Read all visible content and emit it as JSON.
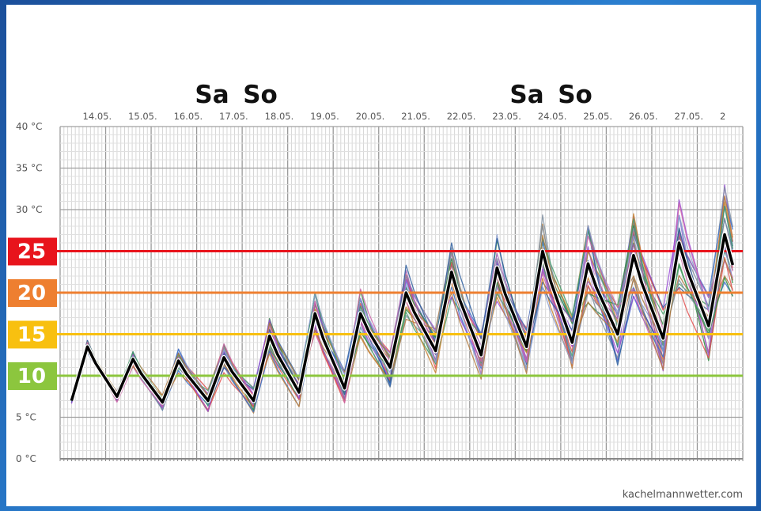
{
  "chart_data": {
    "type": "line",
    "ylabel_unit": "°C",
    "ylim": [
      0,
      40
    ],
    "y_ticks": [
      "0 °C",
      "5 °C",
      "10 °C",
      "15 °C",
      "20 °C",
      "25 °C",
      "30 °C",
      "35 °C",
      "40 °C"
    ],
    "x_start": "13.05. 00:00",
    "x_end": "28.05. 00:00",
    "x_ticks": [
      "14.05.",
      "15.05.",
      "16.05.",
      "17.05.",
      "18.05.",
      "19.05.",
      "20.05.",
      "21.05.",
      "22.05.",
      "23.05.",
      "24.05.",
      "25.05.",
      "26.05.",
      "27.05.",
      "2"
    ],
    "weekend_labels": [
      "Sa",
      "So",
      "Sa",
      "So"
    ],
    "thresholds": [
      {
        "value": 25,
        "label": "25",
        "color": "#e8141c"
      },
      {
        "value": 20,
        "label": "20",
        "color": "#ee7f30"
      },
      {
        "value": 15,
        "label": "15",
        "color": "#f8c010"
      },
      {
        "value": 10,
        "label": "10",
        "color": "#8cc63e"
      }
    ],
    "grid": true,
    "mean_series": {
      "name": "",
      "color": "#000000",
      "day_min": [
        7,
        7.5,
        6.8,
        7,
        7,
        8,
        8.5,
        11,
        13,
        12.5,
        13.5,
        14,
        15,
        14.5,
        16
      ],
      "day_max": [
        13.5,
        12,
        11.8,
        12.2,
        14.8,
        17.5,
        17.5,
        20,
        22.5,
        23,
        25,
        23.5,
        24.5,
        26,
        27
      ]
    },
    "ensemble_member_count": 24,
    "ensemble_colors": [
      "#e05050",
      "#3a6fc8",
      "#2e8b3e",
      "#9a4dd6",
      "#c88030",
      "#7f8fa0",
      "#a05ab0",
      "#2f5f9f",
      "#4aa06a",
      "#cc66aa",
      "#8a9ccf",
      "#b07a40"
    ]
  },
  "source_label": "kachelmannwetter.com"
}
